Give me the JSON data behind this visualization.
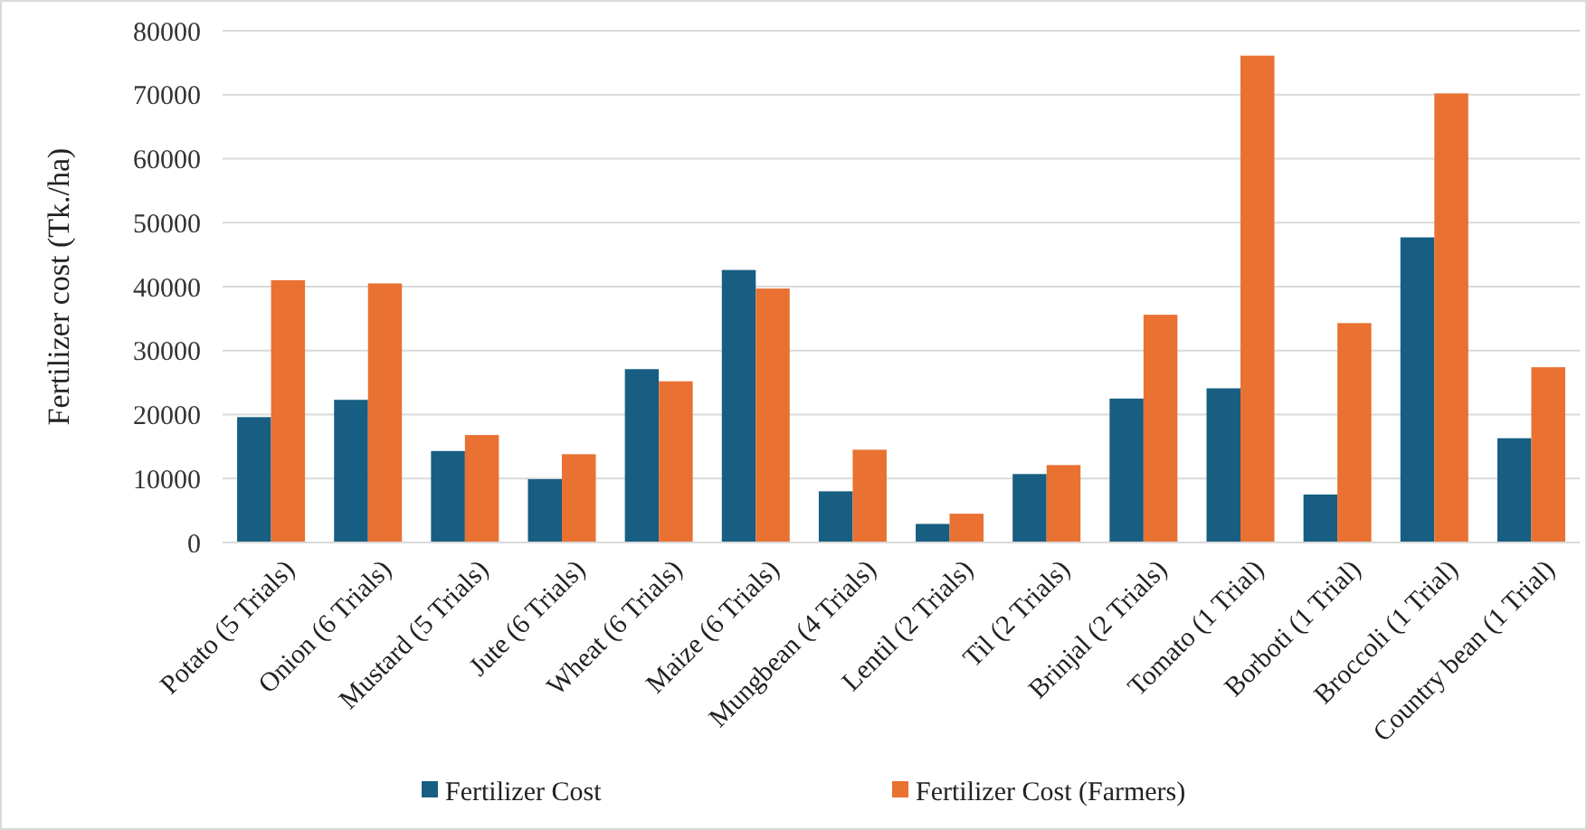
{
  "chart_data": {
    "type": "bar",
    "ylabel": "Fertilizer cost (Tk./ha)",
    "categories": [
      "Potato (5 Trials)",
      "Onion (6 Trials)",
      "Mustard (5 Trials)",
      "Jute  (6 Trials)",
      "Wheat  (6 Trials)",
      "Maize  (6 Trials)",
      "Mungbean  (4 Trials)",
      "Lentil  (2 Trials)",
      "Til (2 Trials)",
      "Brinjal (2 Trials)",
      "Tomato (1 Trial)",
      "Borboti (1 Trial)",
      "Broccoli (1 Trial)",
      "Country bean (1 Trial)"
    ],
    "series": [
      {
        "name": "Fertilizer Cost",
        "color": "#175e82",
        "values": [
          19600,
          22300,
          14300,
          9900,
          27100,
          42600,
          8000,
          2900,
          10700,
          22500,
          24100,
          7500,
          47700,
          16300
        ]
      },
      {
        "name": "Fertilizer Cost (Farmers)",
        "color": "#e97132",
        "values": [
          41000,
          40500,
          16800,
          13800,
          25200,
          39700,
          14500,
          4500,
          12100,
          35600,
          76100,
          34300,
          70200,
          27400
        ]
      }
    ],
    "ylim": [
      0,
      80000
    ],
    "yticks": [
      0,
      10000,
      20000,
      30000,
      40000,
      50000,
      60000,
      70000,
      80000
    ],
    "grid": "y",
    "legend": "bottom"
  }
}
